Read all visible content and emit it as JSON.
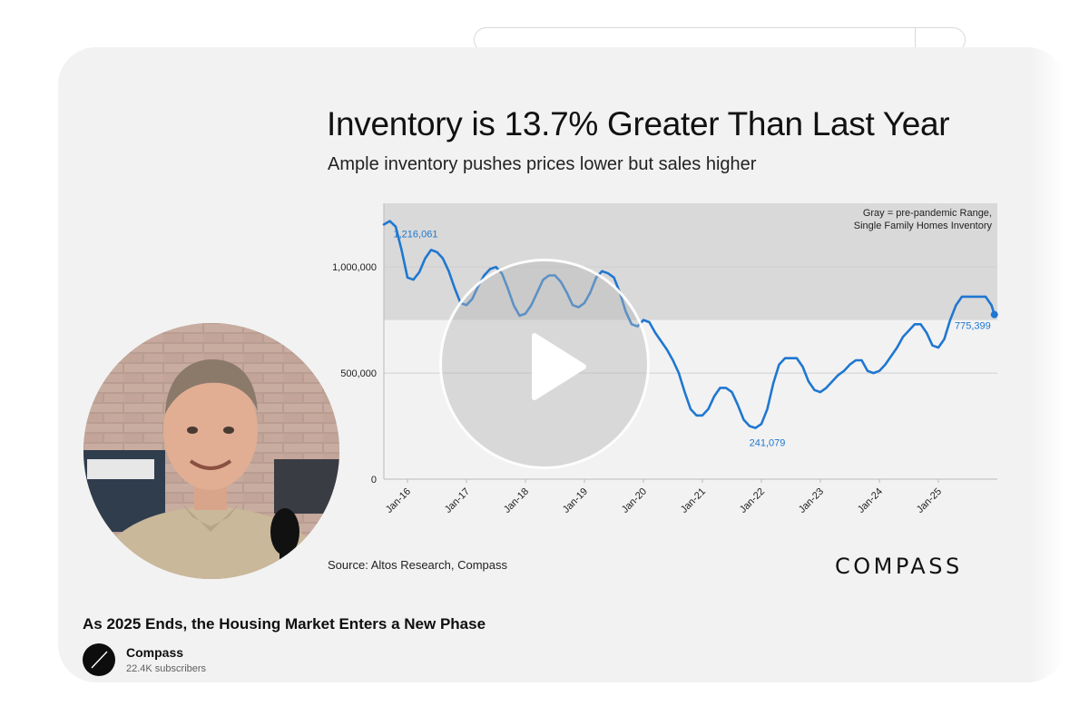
{
  "slide": {
    "title": "Inventory is 13.7% Greater Than Last Year",
    "subtitle": "Ample inventory pushes prices lower but sales higher",
    "source": "Source: Altos Research, Compass",
    "logo_text": "COMPASS"
  },
  "video": {
    "title": "As 2025 Ends, the Housing Market Enters a New Phase",
    "channel": "Compass",
    "subscribers": "22.4K subscribers"
  },
  "icons": {
    "play": "play-icon",
    "channel_avatar": "compass-needle-icon"
  },
  "colors": {
    "line": "#1f77d0",
    "band": "#d9d9d9",
    "card_bg": "#f2f2f2"
  },
  "chart_data": {
    "type": "line",
    "title": "Inventory is 13.7% Greater Than Last Year",
    "subtitle": "Ample inventory pushes prices lower but sales higher",
    "legend": [
      "Gray = pre-pandemic Range,",
      "Single Family Homes Inventory"
    ],
    "legend_position": "top-right",
    "x_ticks": [
      "Jan-16",
      "Jan-17",
      "Jan-18",
      "Jan-19",
      "Jan-20",
      "Jan-21",
      "Jan-22",
      "Jan-23",
      "Jan-24",
      "Jan-25"
    ],
    "x_tick_values": [
      2016,
      2017,
      2018,
      2019,
      2020,
      2021,
      2022,
      2023,
      2024,
      2025
    ],
    "xlim": [
      2015.6,
      2026.0
    ],
    "y_ticks": [
      0,
      500000,
      1000000
    ],
    "y_tick_labels": [
      "0",
      "500,000",
      "1,000,000"
    ],
    "ylim": [
      0,
      1300000
    ],
    "grid": true,
    "band": {
      "label": "pre-pandemic Range",
      "low": 750000,
      "high": 1300000
    },
    "annotations": [
      {
        "text": "1,216,061",
        "x": 2015.7,
        "y": 1216061
      },
      {
        "text": "241,079",
        "x": 2022.1,
        "y": 241079
      },
      {
        "text": "775,399",
        "x": 2025.95,
        "y": 775399
      }
    ],
    "series": [
      {
        "x": [
          2015.6,
          2015.7,
          2015.8,
          2015.9,
          2016.0,
          2016.1,
          2016.2,
          2016.3,
          2016.4,
          2016.5,
          2016.6,
          2016.7,
          2016.8,
          2016.9,
          2017.0,
          2017.1,
          2017.2,
          2017.3,
          2017.4,
          2017.5,
          2017.6,
          2017.7,
          2017.8,
          2017.9,
          2018.0,
          2018.1,
          2018.2,
          2018.3,
          2018.4,
          2018.5,
          2018.6,
          2018.7,
          2018.8,
          2018.9,
          2019.0,
          2019.1,
          2019.2,
          2019.3,
          2019.4,
          2019.5,
          2019.6,
          2019.7,
          2019.8,
          2019.9,
          2020.0,
          2020.1,
          2020.2,
          2020.3,
          2020.4,
          2020.5,
          2020.6,
          2020.7,
          2020.8,
          2020.9,
          2021.0,
          2021.1,
          2021.2,
          2021.3,
          2021.4,
          2021.5,
          2021.6,
          2021.7,
          2021.8,
          2021.9,
          2022.0,
          2022.1,
          2022.2,
          2022.3,
          2022.4,
          2022.5,
          2022.6,
          2022.7,
          2022.8,
          2022.9,
          2023.0,
          2023.1,
          2023.2,
          2023.3,
          2023.4,
          2023.5,
          2023.6,
          2023.7,
          2023.8,
          2023.9,
          2024.0,
          2024.1,
          2024.2,
          2024.3,
          2024.4,
          2024.5,
          2024.6,
          2024.7,
          2024.8,
          2024.9,
          2025.0,
          2025.1,
          2025.2,
          2025.3,
          2025.4,
          2025.5,
          2025.6,
          2025.7,
          2025.8,
          2025.9,
          2025.95
        ],
        "y": [
          1200000,
          1216061,
          1190000,
          1080000,
          950000,
          940000,
          975000,
          1040000,
          1080000,
          1070000,
          1040000,
          980000,
          900000,
          830000,
          820000,
          850000,
          910000,
          960000,
          990000,
          1000000,
          970000,
          900000,
          820000,
          770000,
          780000,
          820000,
          880000,
          940000,
          960000,
          960000,
          930000,
          880000,
          820000,
          810000,
          830000,
          880000,
          950000,
          980000,
          970000,
          950000,
          880000,
          790000,
          730000,
          720000,
          750000,
          740000,
          690000,
          650000,
          610000,
          560000,
          500000,
          410000,
          330000,
          300000,
          300000,
          330000,
          390000,
          430000,
          430000,
          410000,
          350000,
          280000,
          250000,
          241079,
          260000,
          330000,
          450000,
          540000,
          570000,
          570000,
          570000,
          530000,
          460000,
          420000,
          410000,
          430000,
          460000,
          490000,
          510000,
          540000,
          560000,
          560000,
          510000,
          500000,
          510000,
          540000,
          580000,
          620000,
          670000,
          700000,
          730000,
          730000,
          690000,
          630000,
          620000,
          660000,
          750000,
          820000,
          860000,
          860000,
          860000,
          860000,
          860000,
          820000,
          775399
        ]
      }
    ]
  }
}
